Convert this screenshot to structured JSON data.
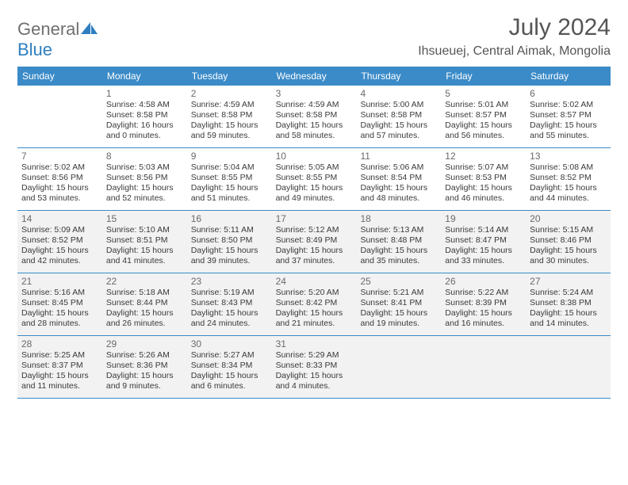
{
  "logo": {
    "general": "General",
    "blue": "Blue"
  },
  "title": "July 2024",
  "location": "Ihsueuej, Central Aimak, Mongolia",
  "colors": {
    "header_bg": "#3b8bc8",
    "header_text": "#ffffff",
    "shaded_bg": "#f2f2f2",
    "border": "#3b8bc8",
    "logo_gray": "#6f6f6f",
    "logo_blue": "#2f7fc0"
  },
  "weekdays": [
    "Sunday",
    "Monday",
    "Tuesday",
    "Wednesday",
    "Thursday",
    "Friday",
    "Saturday"
  ],
  "weeks": [
    {
      "shaded": false,
      "days": [
        null,
        {
          "n": "1",
          "sr": "Sunrise: 4:58 AM",
          "ss": "Sunset: 8:58 PM",
          "d1": "Daylight: 16 hours",
          "d2": "and 0 minutes."
        },
        {
          "n": "2",
          "sr": "Sunrise: 4:59 AM",
          "ss": "Sunset: 8:58 PM",
          "d1": "Daylight: 15 hours",
          "d2": "and 59 minutes."
        },
        {
          "n": "3",
          "sr": "Sunrise: 4:59 AM",
          "ss": "Sunset: 8:58 PM",
          "d1": "Daylight: 15 hours",
          "d2": "and 58 minutes."
        },
        {
          "n": "4",
          "sr": "Sunrise: 5:00 AM",
          "ss": "Sunset: 8:58 PM",
          "d1": "Daylight: 15 hours",
          "d2": "and 57 minutes."
        },
        {
          "n": "5",
          "sr": "Sunrise: 5:01 AM",
          "ss": "Sunset: 8:57 PM",
          "d1": "Daylight: 15 hours",
          "d2": "and 56 minutes."
        },
        {
          "n": "6",
          "sr": "Sunrise: 5:02 AM",
          "ss": "Sunset: 8:57 PM",
          "d1": "Daylight: 15 hours",
          "d2": "and 55 minutes."
        }
      ]
    },
    {
      "shaded": false,
      "days": [
        {
          "n": "7",
          "sr": "Sunrise: 5:02 AM",
          "ss": "Sunset: 8:56 PM",
          "d1": "Daylight: 15 hours",
          "d2": "and 53 minutes."
        },
        {
          "n": "8",
          "sr": "Sunrise: 5:03 AM",
          "ss": "Sunset: 8:56 PM",
          "d1": "Daylight: 15 hours",
          "d2": "and 52 minutes."
        },
        {
          "n": "9",
          "sr": "Sunrise: 5:04 AM",
          "ss": "Sunset: 8:55 PM",
          "d1": "Daylight: 15 hours",
          "d2": "and 51 minutes."
        },
        {
          "n": "10",
          "sr": "Sunrise: 5:05 AM",
          "ss": "Sunset: 8:55 PM",
          "d1": "Daylight: 15 hours",
          "d2": "and 49 minutes."
        },
        {
          "n": "11",
          "sr": "Sunrise: 5:06 AM",
          "ss": "Sunset: 8:54 PM",
          "d1": "Daylight: 15 hours",
          "d2": "and 48 minutes."
        },
        {
          "n": "12",
          "sr": "Sunrise: 5:07 AM",
          "ss": "Sunset: 8:53 PM",
          "d1": "Daylight: 15 hours",
          "d2": "and 46 minutes."
        },
        {
          "n": "13",
          "sr": "Sunrise: 5:08 AM",
          "ss": "Sunset: 8:52 PM",
          "d1": "Daylight: 15 hours",
          "d2": "and 44 minutes."
        }
      ]
    },
    {
      "shaded": true,
      "days": [
        {
          "n": "14",
          "sr": "Sunrise: 5:09 AM",
          "ss": "Sunset: 8:52 PM",
          "d1": "Daylight: 15 hours",
          "d2": "and 42 minutes."
        },
        {
          "n": "15",
          "sr": "Sunrise: 5:10 AM",
          "ss": "Sunset: 8:51 PM",
          "d1": "Daylight: 15 hours",
          "d2": "and 41 minutes."
        },
        {
          "n": "16",
          "sr": "Sunrise: 5:11 AM",
          "ss": "Sunset: 8:50 PM",
          "d1": "Daylight: 15 hours",
          "d2": "and 39 minutes."
        },
        {
          "n": "17",
          "sr": "Sunrise: 5:12 AM",
          "ss": "Sunset: 8:49 PM",
          "d1": "Daylight: 15 hours",
          "d2": "and 37 minutes."
        },
        {
          "n": "18",
          "sr": "Sunrise: 5:13 AM",
          "ss": "Sunset: 8:48 PM",
          "d1": "Daylight: 15 hours",
          "d2": "and 35 minutes."
        },
        {
          "n": "19",
          "sr": "Sunrise: 5:14 AM",
          "ss": "Sunset: 8:47 PM",
          "d1": "Daylight: 15 hours",
          "d2": "and 33 minutes."
        },
        {
          "n": "20",
          "sr": "Sunrise: 5:15 AM",
          "ss": "Sunset: 8:46 PM",
          "d1": "Daylight: 15 hours",
          "d2": "and 30 minutes."
        }
      ]
    },
    {
      "shaded": true,
      "days": [
        {
          "n": "21",
          "sr": "Sunrise: 5:16 AM",
          "ss": "Sunset: 8:45 PM",
          "d1": "Daylight: 15 hours",
          "d2": "and 28 minutes."
        },
        {
          "n": "22",
          "sr": "Sunrise: 5:18 AM",
          "ss": "Sunset: 8:44 PM",
          "d1": "Daylight: 15 hours",
          "d2": "and 26 minutes."
        },
        {
          "n": "23",
          "sr": "Sunrise: 5:19 AM",
          "ss": "Sunset: 8:43 PM",
          "d1": "Daylight: 15 hours",
          "d2": "and 24 minutes."
        },
        {
          "n": "24",
          "sr": "Sunrise: 5:20 AM",
          "ss": "Sunset: 8:42 PM",
          "d1": "Daylight: 15 hours",
          "d2": "and 21 minutes."
        },
        {
          "n": "25",
          "sr": "Sunrise: 5:21 AM",
          "ss": "Sunset: 8:41 PM",
          "d1": "Daylight: 15 hours",
          "d2": "and 19 minutes."
        },
        {
          "n": "26",
          "sr": "Sunrise: 5:22 AM",
          "ss": "Sunset: 8:39 PM",
          "d1": "Daylight: 15 hours",
          "d2": "and 16 minutes."
        },
        {
          "n": "27",
          "sr": "Sunrise: 5:24 AM",
          "ss": "Sunset: 8:38 PM",
          "d1": "Daylight: 15 hours",
          "d2": "and 14 minutes."
        }
      ]
    },
    {
      "shaded": true,
      "days": [
        {
          "n": "28",
          "sr": "Sunrise: 5:25 AM",
          "ss": "Sunset: 8:37 PM",
          "d1": "Daylight: 15 hours",
          "d2": "and 11 minutes."
        },
        {
          "n": "29",
          "sr": "Sunrise: 5:26 AM",
          "ss": "Sunset: 8:36 PM",
          "d1": "Daylight: 15 hours",
          "d2": "and 9 minutes."
        },
        {
          "n": "30",
          "sr": "Sunrise: 5:27 AM",
          "ss": "Sunset: 8:34 PM",
          "d1": "Daylight: 15 hours",
          "d2": "and 6 minutes."
        },
        {
          "n": "31",
          "sr": "Sunrise: 5:29 AM",
          "ss": "Sunset: 8:33 PM",
          "d1": "Daylight: 15 hours",
          "d2": "and 4 minutes."
        },
        null,
        null,
        null
      ]
    }
  ]
}
